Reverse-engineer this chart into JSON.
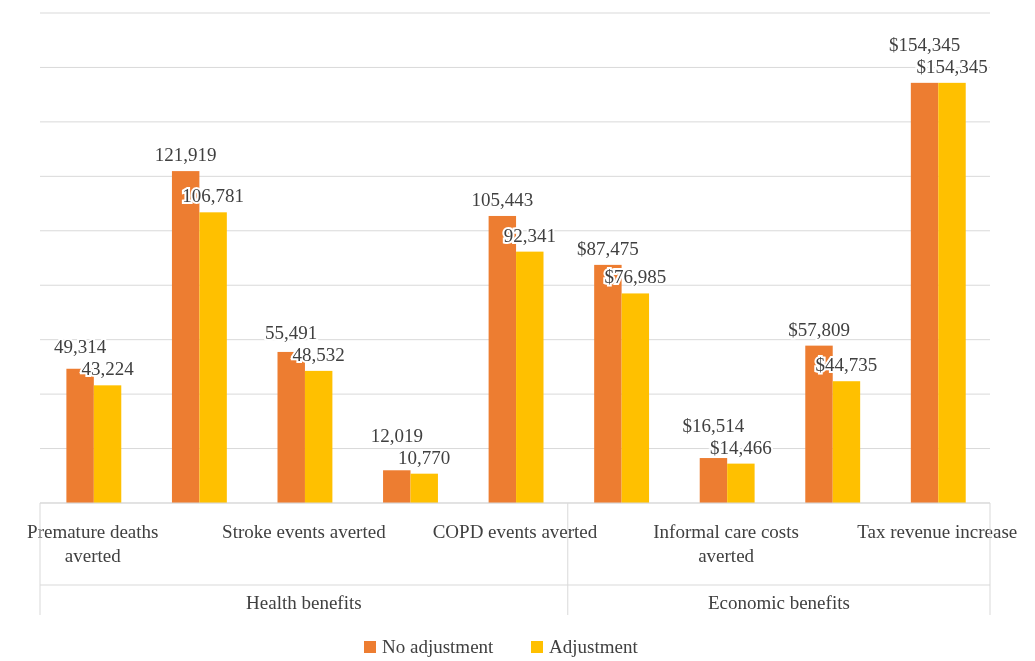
{
  "chart_data": {
    "type": "bar",
    "categories": [
      "Premature deaths averted",
      null,
      "Stroke events averted",
      null,
      "COPD events averted",
      null,
      "Informal care costs averted",
      null,
      "Tax revenue increase"
    ],
    "series": [
      {
        "name": "No adjustment",
        "color": "#ed7d31",
        "values": [
          49314,
          121919,
          55491,
          12019,
          105443,
          87475,
          16514,
          57809,
          154345
        ],
        "value_labels": [
          "49,314",
          "121,919",
          "55,491",
          "12,019",
          "105,443",
          "$87,475",
          "$16,514",
          "$57,809",
          "$154,345"
        ]
      },
      {
        "name": "Adjustment",
        "color": "#ffc000",
        "values": [
          43224,
          106781,
          48532,
          10770,
          92341,
          76985,
          14466,
          44735,
          154345
        ],
        "value_labels": [
          "43,224",
          "106,781",
          "48,532",
          "10,770",
          "92,341",
          "$76,985",
          "$14,466",
          "$44,735",
          "$154,345"
        ]
      }
    ],
    "ylim": [
      0,
      180000
    ],
    "yticks": [
      {
        "value": 0,
        "label": null
      },
      {
        "value": 20000,
        "label": null
      },
      {
        "value": 40000,
        "label": null
      },
      {
        "value": 60000,
        "label": null
      },
      {
        "value": 80000,
        "label": null
      },
      {
        "value": 100000,
        "label": null
      },
      {
        "value": 120000,
        "label": null
      },
      {
        "value": 140000,
        "label": null
      },
      {
        "value": 160000,
        "label": null
      },
      {
        "value": 180000,
        "label": null
      }
    ],
    "tick_labels": "x",
    "grid": "y",
    "legend": "bottom",
    "annotations": [
      "Health benefits",
      "Economic benefits"
    ]
  }
}
